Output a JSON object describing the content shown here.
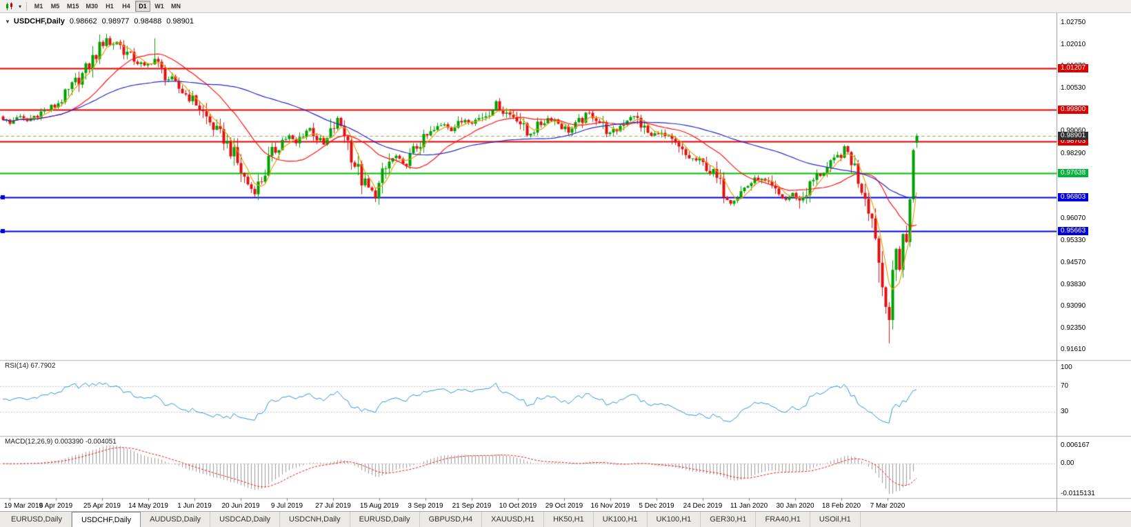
{
  "toolbar": {
    "timeframes": [
      "M1",
      "M5",
      "M15",
      "M30",
      "H1",
      "H4",
      "D1",
      "W1",
      "MN"
    ],
    "active_timeframe": "D1"
  },
  "chart_header": {
    "symbol_label": "USDCHF,Daily",
    "open": "0.98662",
    "high": "0.98977",
    "low": "0.98488",
    "close": "0.98901"
  },
  "indicators": {
    "rsi_label": "RSI(14) 67.7902",
    "macd_label": "MACD(12,26,9) 0.003390 -0.004051",
    "rsi_levels": [
      "100",
      "70",
      "30"
    ],
    "macd_axis": [
      "0.006167",
      "0.00",
      "-0.0115131"
    ]
  },
  "price_axis": {
    "top_price": 1.0275,
    "step": 0.0074,
    "labels": [
      "1.02750",
      "1.02010",
      "1.01270",
      "1.00530",
      "0.99790",
      "0.99060",
      "0.98290",
      "0.97550",
      "0.96810",
      "0.96070",
      "0.95330",
      "0.94570",
      "0.93830",
      "0.93090",
      "0.92350",
      "0.91610"
    ],
    "badges": [
      {
        "text": "1.01207",
        "price": 1.01207,
        "bg": "#dd0000"
      },
      {
        "text": "0.99800",
        "price": 0.998,
        "bg": "#dd0000"
      },
      {
        "text": "0.98703",
        "price": 0.98703,
        "bg": "#dd0000"
      },
      {
        "text": "0.97638",
        "price": 0.97638,
        "bg": "#00b43c"
      },
      {
        "text": "0.96803",
        "price": 0.96803,
        "bg": "#0000dd"
      },
      {
        "text": "0.95663",
        "price": 0.95663,
        "bg": "#0000dd"
      },
      {
        "text": "0.98901",
        "price": 0.98901,
        "bg": "#2f2f2f"
      }
    ]
  },
  "chart_data": {
    "type": "candlestick",
    "symbol": "USDCHF",
    "timeframe": "Daily",
    "bars_total": 266,
    "last_ohlc": {
      "open": 0.98662,
      "high": 0.98977,
      "low": 0.98488,
      "close": 0.98901
    },
    "current_price": 0.98901,
    "current_price_color": "#a8a878",
    "candle_colors": {
      "up": "#00a000",
      "down": "#e01010"
    },
    "horizontal_lines": [
      {
        "price": 1.01207,
        "color": "#dd0000",
        "width": 2,
        "handles": false
      },
      {
        "price": 0.998,
        "color": "#dd0000",
        "width": 2,
        "handles": false
      },
      {
        "price": 0.98703,
        "color": "#dd0000",
        "width": 2,
        "handles": false
      },
      {
        "price": 0.97638,
        "color": "#00c000",
        "width": 2,
        "handles": false
      },
      {
        "price": 0.96803,
        "color": "#0000e0",
        "width": 2,
        "handles": true
      },
      {
        "price": 0.95663,
        "color": "#0000e0",
        "width": 2,
        "handles": true
      }
    ],
    "moving_averages": [
      {
        "period": 5,
        "color": "#e0a010",
        "type": "sma"
      },
      {
        "period": 20,
        "color": "#ff1010",
        "type": "sma"
      },
      {
        "period": 60,
        "color": "#2828c8",
        "type": "sma"
      }
    ],
    "rsi": {
      "period": 14,
      "value": 67.7902,
      "color": "#2f96d8",
      "levels": [
        70,
        30
      ]
    },
    "macd": {
      "fast": 12,
      "slow": 26,
      "signal": 9,
      "value": 0.00339,
      "signal_value": -0.004051,
      "hist_color": "#9a9a9a",
      "signal_color": "#e02020"
    },
    "x_label_first_slot": 2,
    "x_label_slot_step": 13.4,
    "x_axis_labels": [
      "19 Mar 2019",
      "6 Apr 2019",
      "25 Apr 2019",
      "14 May 2019",
      "1 Jun 2019",
      "20 Jun 2019",
      "9 Jul 2019",
      "27 Jul 2019",
      "15 Aug 2019",
      "3 Sep 2019",
      "21 Sep 2019",
      "10 Oct 2019",
      "29 Oct 2019",
      "16 Nov 2019",
      "5 Dec 2019",
      "24 Dec 2019",
      "11 Jan 2020",
      "30 Jan 2020",
      "18 Feb 2020",
      "7 Mar 2020"
    ],
    "price_waypoints": [
      [
        0,
        0.9952
      ],
      [
        2,
        0.993
      ],
      [
        4,
        0.9958
      ],
      [
        7,
        0.994
      ],
      [
        10,
        0.9966
      ],
      [
        13,
        0.998
      ],
      [
        15,
        0.9992
      ],
      [
        17,
        1.0015
      ],
      [
        19,
        1.004
      ],
      [
        21,
        1.0072
      ],
      [
        23,
        1.0098
      ],
      [
        25,
        1.0132
      ],
      [
        27,
        1.017
      ],
      [
        29,
        1.0205
      ],
      [
        30,
        1.0226
      ],
      [
        31,
        1.0198
      ],
      [
        33,
        1.0212
      ],
      [
        35,
        1.0182
      ],
      [
        37,
        1.016
      ],
      [
        39,
        1.0142
      ],
      [
        41,
        1.0125
      ],
      [
        43,
        1.014
      ],
      [
        44,
        1.0152
      ],
      [
        46,
        1.011
      ],
      [
        48,
        1.0085
      ],
      [
        50,
        1.0062
      ],
      [
        52,
        1.004
      ],
      [
        54,
        1.0022
      ],
      [
        56,
        1.0002
      ],
      [
        58,
        0.9968
      ],
      [
        60,
        0.9935
      ],
      [
        62,
        0.9905
      ],
      [
        64,
        0.988
      ],
      [
        66,
        0.9845
      ],
      [
        68,
        0.9795
      ],
      [
        70,
        0.9745
      ],
      [
        72,
        0.971
      ],
      [
        73,
        0.9702
      ],
      [
        75,
        0.9745
      ],
      [
        77,
        0.98
      ],
      [
        79,
        0.9845
      ],
      [
        81,
        0.9875
      ],
      [
        83,
        0.9888
      ],
      [
        85,
        0.9862
      ],
      [
        87,
        0.9902
      ],
      [
        89,
        0.9915
      ],
      [
        91,
        0.9885
      ],
      [
        93,
        0.9858
      ],
      [
        95,
        0.9895
      ],
      [
        97,
        0.9945
      ],
      [
        99,
        0.9905
      ],
      [
        100,
        0.9868
      ],
      [
        102,
        0.9795
      ],
      [
        104,
        0.974
      ],
      [
        106,
        0.9708
      ],
      [
        108,
        0.9692
      ],
      [
        110,
        0.9748
      ],
      [
        112,
        0.98
      ],
      [
        114,
        0.982
      ],
      [
        116,
        0.9788
      ],
      [
        118,
        0.9815
      ],
      [
        120,
        0.9855
      ],
      [
        122,
        0.9878
      ],
      [
        124,
        0.9898
      ],
      [
        126,
        0.9915
      ],
      [
        128,
        0.9932
      ],
      [
        130,
        0.9912
      ],
      [
        132,
        0.9928
      ],
      [
        134,
        0.9948
      ],
      [
        136,
        0.9938
      ],
      [
        138,
        0.995
      ],
      [
        140,
        0.9962
      ],
      [
        142,
        0.9988
      ],
      [
        143,
        1.0002
      ],
      [
        145,
        0.9975
      ],
      [
        147,
        0.9962
      ],
      [
        149,
        0.9955
      ],
      [
        151,
        0.9915
      ],
      [
        152,
        0.9892
      ],
      [
        154,
        0.9912
      ],
      [
        156,
        0.9932
      ],
      [
        158,
        0.995
      ],
      [
        160,
        0.9945
      ],
      [
        162,
        0.9925
      ],
      [
        164,
        0.9905
      ],
      [
        166,
        0.9922
      ],
      [
        168,
        0.9948
      ],
      [
        170,
        0.9965
      ],
      [
        172,
        0.9952
      ],
      [
        174,
        0.9922
      ],
      [
        176,
        0.9895
      ],
      [
        178,
        0.9912
      ],
      [
        180,
        0.9938
      ],
      [
        182,
        0.9958
      ],
      [
        184,
        0.9945
      ],
      [
        186,
        0.9912
      ],
      [
        188,
        0.9888
      ],
      [
        190,
        0.9902
      ],
      [
        192,
        0.9885
      ],
      [
        194,
        0.9868
      ],
      [
        196,
        0.9845
      ],
      [
        198,
        0.9822
      ],
      [
        200,
        0.981
      ],
      [
        202,
        0.9802
      ],
      [
        204,
        0.9785
      ],
      [
        206,
        0.9758
      ],
      [
        208,
        0.9722
      ],
      [
        210,
        0.9685
      ],
      [
        211,
        0.9668
      ],
      [
        213,
        0.9688
      ],
      [
        215,
        0.9712
      ],
      [
        217,
        0.9732
      ],
      [
        219,
        0.9745
      ],
      [
        221,
        0.9728
      ],
      [
        223,
        0.971
      ],
      [
        225,
        0.9688
      ],
      [
        227,
        0.9672
      ],
      [
        229,
        0.9692
      ],
      [
        231,
        0.9668
      ],
      [
        233,
        0.9702
      ],
      [
        235,
        0.9738
      ],
      [
        237,
        0.9762
      ],
      [
        239,
        0.978
      ],
      [
        241,
        0.98
      ],
      [
        243,
        0.9828
      ],
      [
        244,
        0.9848
      ],
      [
        245,
        0.9832
      ],
      [
        246,
        0.9812
      ],
      [
        247,
        0.978
      ],
      [
        248,
        0.9746
      ],
      [
        249,
        0.9718
      ],
      [
        250,
        0.9692
      ],
      [
        251,
        0.9655
      ],
      [
        252,
        0.9608
      ],
      [
        253,
        0.956
      ],
      [
        254,
        0.946
      ],
      [
        255,
        0.938
      ],
      [
        256,
        0.933
      ],
      [
        257,
        0.9272
      ],
      [
        258,
        0.94
      ],
      [
        259,
        0.95
      ],
      [
        260,
        0.9455
      ],
      [
        261,
        0.956
      ],
      [
        262,
        0.9515
      ],
      [
        263,
        0.968
      ],
      [
        264,
        0.9866
      ],
      [
        265,
        0.98901
      ]
    ],
    "wick_lows": [
      [
        72,
        0.9695
      ],
      [
        108,
        0.9664
      ],
      [
        211,
        0.9655
      ],
      [
        231,
        0.9642
      ],
      [
        254,
        0.939
      ],
      [
        257,
        0.9183
      ]
    ],
    "wick_highs": [
      [
        30,
        1.0237
      ],
      [
        44,
        1.0222
      ],
      [
        97,
        0.9956
      ],
      [
        143,
        1.001
      ],
      [
        244,
        0.986
      ]
    ]
  },
  "tabs": {
    "active_index": 1,
    "items": [
      "EURUSD,Daily",
      "USDCHF,Daily",
      "AUDUSD,Daily",
      "USDCAD,Daily",
      "USDCNH,Daily",
      "EURUSD,Daily",
      "GBPUSD,H4",
      "XAUUSD,H1",
      "HK50,H1",
      "UK100,H1",
      "UK100,H1",
      "GER30,H1",
      "FRA40,H1",
      "USOil,H1"
    ]
  }
}
